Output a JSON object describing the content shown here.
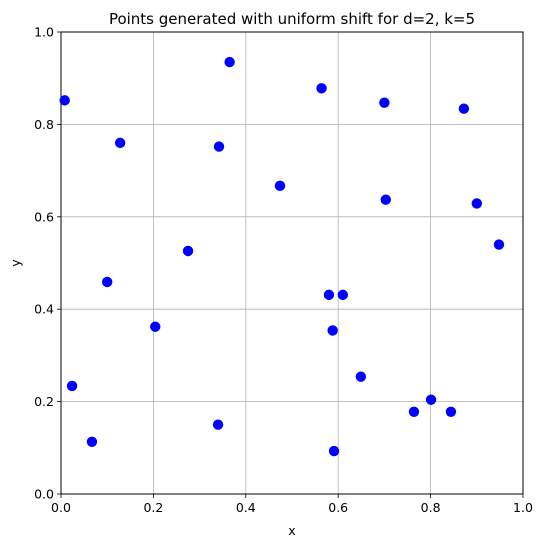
{
  "chart_data": {
    "type": "scatter",
    "title": "Points generated with uniform shift for d=2, k=5",
    "xlabel": "x",
    "ylabel": "y",
    "xlim": [
      0,
      1
    ],
    "ylim": [
      0,
      1
    ],
    "xticks": [
      "0.0",
      "0.2",
      "0.4",
      "0.6",
      "0.8",
      "1.0"
    ],
    "yticks": [
      "0.0",
      "0.2",
      "0.4",
      "0.6",
      "0.8",
      "1.0"
    ],
    "grid": true,
    "marker_color": "#0000ff",
    "points": [
      {
        "x": 0.008,
        "y": 0.852
      },
      {
        "x": 0.024,
        "y": 0.234
      },
      {
        "x": 0.067,
        "y": 0.113
      },
      {
        "x": 0.1,
        "y": 0.459
      },
      {
        "x": 0.128,
        "y": 0.76
      },
      {
        "x": 0.204,
        "y": 0.362
      },
      {
        "x": 0.275,
        "y": 0.526
      },
      {
        "x": 0.34,
        "y": 0.15
      },
      {
        "x": 0.342,
        "y": 0.752
      },
      {
        "x": 0.365,
        "y": 0.935
      },
      {
        "x": 0.474,
        "y": 0.667
      },
      {
        "x": 0.564,
        "y": 0.878
      },
      {
        "x": 0.58,
        "y": 0.431
      },
      {
        "x": 0.588,
        "y": 0.354
      },
      {
        "x": 0.591,
        "y": 0.093
      },
      {
        "x": 0.61,
        "y": 0.431
      },
      {
        "x": 0.649,
        "y": 0.254
      },
      {
        "x": 0.7,
        "y": 0.847
      },
      {
        "x": 0.703,
        "y": 0.637
      },
      {
        "x": 0.764,
        "y": 0.178
      },
      {
        "x": 0.801,
        "y": 0.204
      },
      {
        "x": 0.844,
        "y": 0.178
      },
      {
        "x": 0.872,
        "y": 0.834
      },
      {
        "x": 0.9,
        "y": 0.629
      },
      {
        "x": 0.948,
        "y": 0.54
      }
    ]
  }
}
